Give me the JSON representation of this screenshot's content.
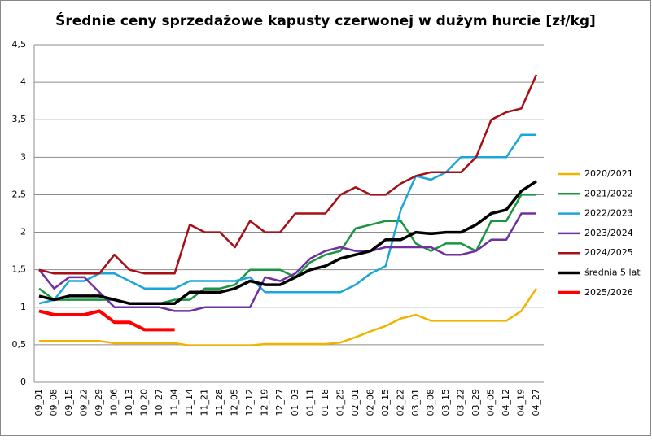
{
  "chart_data": {
    "type": "line",
    "title": "Średnie ceny sprzedażowe kapusty czerwonej w dużym hurcie [zł/kg]",
    "categories": [
      "09_01",
      "09_08",
      "09_15",
      "09_22",
      "09_29",
      "10_06",
      "10_13",
      "10_20",
      "10_27",
      "11_04",
      "11_14",
      "11_21",
      "11_28",
      "12_05",
      "12_12",
      "12_19",
      "12_27",
      "01_03",
      "01_11",
      "01_18",
      "01_25",
      "02_01",
      "02_08",
      "02_15",
      "02_22",
      "03_01",
      "03_08",
      "03_15",
      "03_22",
      "03_29",
      "04_05",
      "04_12",
      "04_19",
      "04_27"
    ],
    "ylim": [
      0,
      4.5
    ],
    "yticks": [
      0,
      {
        "value": 0.5,
        "label": "0,5"
      },
      1,
      {
        "value": 1.5,
        "label": "1,5"
      },
      2,
      {
        "value": 2.5,
        "label": "2,5"
      },
      3,
      {
        "value": 3.5,
        "label": "3,5"
      },
      4,
      {
        "value": 4.5,
        "label": "4,5"
      }
    ],
    "grid": true,
    "legend": "right",
    "series": [
      {
        "name": "2020/2021",
        "color": "#f0b400",
        "width": 2.5,
        "values": [
          0.55,
          0.55,
          0.55,
          0.55,
          0.55,
          0.52,
          0.52,
          0.52,
          0.52,
          0.52,
          0.49,
          0.49,
          0.49,
          0.49,
          0.49,
          0.51,
          0.51,
          0.51,
          0.51,
          0.51,
          0.53,
          0.6,
          0.68,
          0.75,
          0.85,
          0.9,
          0.82,
          0.82,
          0.82,
          0.82,
          0.82,
          0.82,
          0.95,
          1.25
        ]
      },
      {
        "name": "2021/2022",
        "color": "#1a9641",
        "width": 2.5,
        "values": [
          1.25,
          1.1,
          1.1,
          1.1,
          1.1,
          1.1,
          1.05,
          1.05,
          1.05,
          1.1,
          1.1,
          1.25,
          1.25,
          1.3,
          1.5,
          1.5,
          1.5,
          1.4,
          1.6,
          1.7,
          1.75,
          2.05,
          2.1,
          2.15,
          2.15,
          1.85,
          1.75,
          1.85,
          1.85,
          1.75,
          2.15,
          2.15,
          2.5,
          2.5
        ]
      },
      {
        "name": "2022/2023",
        "color": "#1aa7d8",
        "width": 2.5,
        "values": [
          1.05,
          1.1,
          1.35,
          1.35,
          1.45,
          1.45,
          1.35,
          1.25,
          1.25,
          1.25,
          1.35,
          1.35,
          1.35,
          1.35,
          1.4,
          1.2,
          1.2,
          1.2,
          1.2,
          1.2,
          1.2,
          1.3,
          1.45,
          1.55,
          2.3,
          2.75,
          2.7,
          2.8,
          3.0,
          3.0,
          3.0,
          3.0,
          3.3,
          3.3
        ]
      },
      {
        "name": "2023/2024",
        "color": "#7030a0",
        "width": 2.5,
        "values": [
          1.5,
          1.25,
          1.4,
          1.4,
          1.2,
          1.0,
          1.0,
          1.0,
          1.0,
          0.95,
          0.95,
          1.0,
          1.0,
          1.0,
          1.0,
          1.4,
          1.35,
          1.45,
          1.65,
          1.75,
          1.8,
          1.75,
          1.75,
          1.8,
          1.8,
          1.8,
          1.8,
          1.7,
          1.7,
          1.75,
          1.9,
          1.9,
          2.25,
          2.25
        ]
      },
      {
        "name": "2024/2025",
        "color": "#a50f15",
        "width": 2.5,
        "values": [
          1.5,
          1.45,
          1.45,
          1.45,
          1.45,
          1.7,
          1.5,
          1.45,
          1.45,
          1.45,
          2.1,
          2.0,
          2.0,
          1.8,
          2.15,
          2.0,
          2.0,
          2.25,
          2.25,
          2.25,
          2.5,
          2.6,
          2.5,
          2.5,
          2.65,
          2.75,
          2.8,
          2.8,
          2.8,
          3.0,
          3.5,
          3.6,
          3.65,
          4.1
        ]
      },
      {
        "name": "średnia 5 lat",
        "color": "#000000",
        "width": 3.5,
        "values": [
          1.15,
          1.1,
          1.15,
          1.15,
          1.15,
          1.1,
          1.05,
          1.05,
          1.05,
          1.05,
          1.2,
          1.2,
          1.2,
          1.25,
          1.35,
          1.3,
          1.3,
          1.4,
          1.5,
          1.55,
          1.65,
          1.7,
          1.75,
          1.9,
          1.9,
          2.0,
          1.98,
          2.0,
          2.0,
          2.1,
          2.25,
          2.3,
          2.55,
          2.68
        ]
      },
      {
        "name": "2025/2026",
        "color": "#ff0000",
        "width": 4,
        "values": [
          0.95,
          0.9,
          0.9,
          0.9,
          0.95,
          0.8,
          0.8,
          0.7,
          0.7,
          0.7,
          null,
          null,
          null,
          null,
          null,
          null,
          null,
          null,
          null,
          null,
          null,
          null,
          null,
          null,
          null,
          null,
          null,
          null,
          null,
          null,
          null,
          null,
          null,
          null
        ]
      }
    ]
  }
}
